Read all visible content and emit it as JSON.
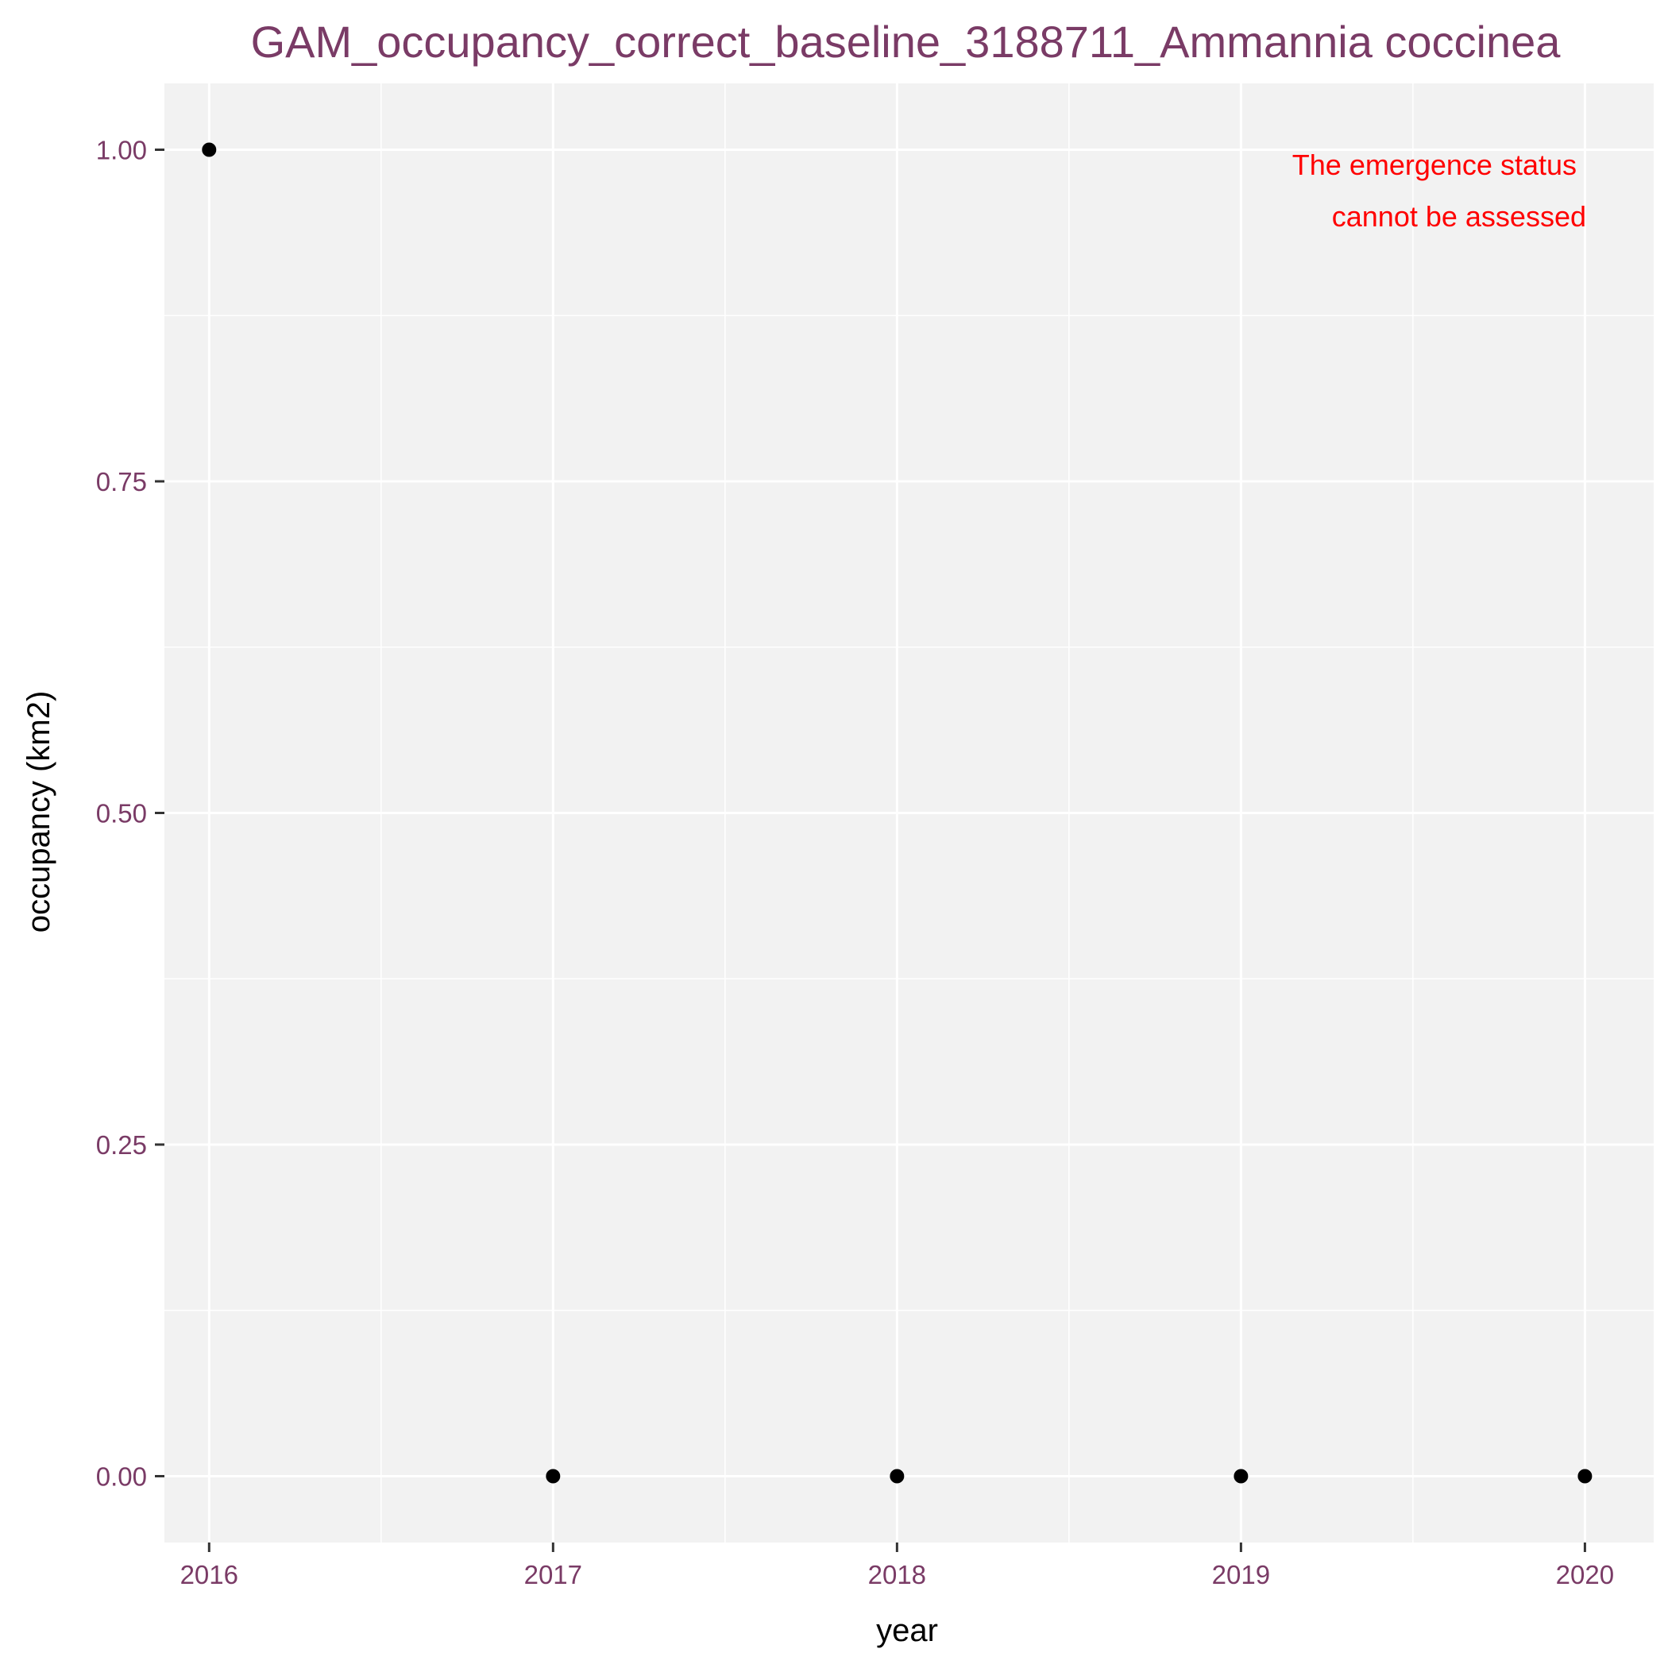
{
  "chart_data": {
    "type": "scatter",
    "title": "GAM_occupancy_correct_baseline_3188711_Ammannia coccinea",
    "xlabel": "year",
    "ylabel": "occupancy (km2)",
    "x": [
      2016,
      2017,
      2018,
      2019,
      2020
    ],
    "y": [
      1,
      0,
      0,
      0,
      0
    ],
    "x_ticks": [
      "2016",
      "2017",
      "2018",
      "2019",
      "2020"
    ],
    "y_ticks": [
      "0.00",
      "0.25",
      "0.50",
      "0.75",
      "1.00"
    ],
    "xlim": [
      2015.87,
      2020.2
    ],
    "ylim": [
      -0.05,
      1.05
    ],
    "grid": true,
    "annotation": [
      "The emergence status",
      "cannot be assessed"
    ],
    "colors": {
      "panel": "#f2f2f2",
      "point": "#000000",
      "title": "#7a3b66",
      "tick_label": "#7a3b66",
      "annotation": "#ff0000"
    }
  }
}
